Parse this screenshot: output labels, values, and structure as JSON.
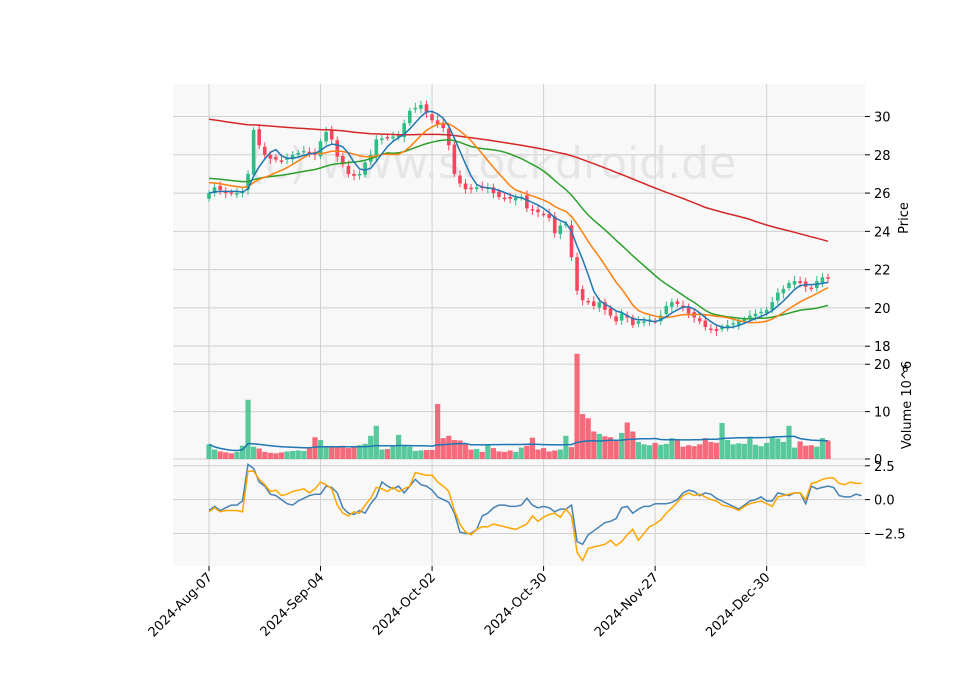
{
  "chart_data": {
    "type": "candlestick",
    "watermark": "(c) www.stockdroid.de",
    "x_labels": [
      "2024-Aug-07",
      "2024-Sep-04",
      "2024-Oct-02",
      "2024-Oct-30",
      "2024-Nov-27",
      "2024-Dec-30"
    ],
    "price_panel": {
      "ylabel": "Price",
      "ylim": [
        17.8,
        31.7
      ],
      "yticks": [
        "18",
        "20",
        "22",
        "24",
        "26",
        "28",
        "30"
      ],
      "ma_colors": {
        "ma_fast": "#1f77b4",
        "ma_mid": "#ff7f0e",
        "ma_slow": "#2ca02c",
        "ma_long": "#d62728"
      },
      "up_color": "#2ebd85",
      "down_color": "#f6465d",
      "close_anchors": [
        [
          0,
          26.0
        ],
        [
          1,
          26.3
        ],
        [
          3,
          26.0
        ],
        [
          5,
          26.0
        ],
        [
          6,
          26.1
        ],
        [
          7,
          27.0
        ],
        [
          8,
          29.3
        ],
        [
          9,
          28.5
        ],
        [
          10,
          28.0
        ],
        [
          11,
          27.8
        ],
        [
          13,
          27.7
        ],
        [
          15,
          28.0
        ],
        [
          17,
          28.2
        ],
        [
          19,
          28.0
        ],
        [
          20,
          28.7
        ],
        [
          21,
          29.2
        ],
        [
          22,
          28.8
        ],
        [
          23,
          27.9
        ],
        [
          24,
          27.5
        ],
        [
          25,
          27.0
        ],
        [
          26,
          26.9
        ],
        [
          27,
          27.0
        ],
        [
          28,
          27.6
        ],
        [
          29,
          28.0
        ],
        [
          30,
          28.8
        ],
        [
          32,
          28.9
        ],
        [
          34,
          29.0
        ],
        [
          36,
          30.3
        ],
        [
          38,
          30.6
        ],
        [
          40,
          29.8
        ],
        [
          42,
          29.4
        ],
        [
          43,
          28.5
        ],
        [
          44,
          27.0
        ],
        [
          45,
          26.5
        ],
        [
          46,
          26.2
        ],
        [
          48,
          26.3
        ],
        [
          50,
          26.3
        ],
        [
          51,
          26.0
        ],
        [
          52,
          25.8
        ],
        [
          54,
          25.7
        ],
        [
          56,
          25.8
        ],
        [
          57,
          25.2
        ],
        [
          58,
          25.1
        ],
        [
          60,
          24.9
        ],
        [
          61,
          24.7
        ],
        [
          62,
          23.9
        ],
        [
          63,
          24.3
        ],
        [
          64,
          24.4
        ],
        [
          66,
          20.9
        ],
        [
          67,
          20.4
        ],
        [
          68,
          20.3
        ],
        [
          69,
          20.1
        ],
        [
          70,
          20.3
        ],
        [
          71,
          19.9
        ],
        [
          72,
          19.6
        ],
        [
          73,
          19.3
        ],
        [
          74,
          19.7
        ],
        [
          75,
          19.5
        ],
        [
          76,
          19.1
        ],
        [
          77,
          19.3
        ],
        [
          78,
          19.3
        ],
        [
          79,
          19.4
        ],
        [
          80,
          19.3
        ],
        [
          81,
          19.6
        ],
        [
          82,
          20.1
        ],
        [
          83,
          20.3
        ],
        [
          84,
          20.2
        ],
        [
          85,
          20.0
        ],
        [
          86,
          19.7
        ],
        [
          87,
          19.5
        ],
        [
          88,
          19.3
        ],
        [
          89,
          19.0
        ],
        [
          90,
          18.9
        ],
        [
          91,
          18.8
        ],
        [
          92,
          19.0
        ],
        [
          93,
          19.1
        ],
        [
          94,
          19.2
        ],
        [
          95,
          19.3
        ],
        [
          96,
          19.4
        ],
        [
          97,
          19.6
        ],
        [
          98,
          19.7
        ],
        [
          99,
          19.8
        ],
        [
          100,
          19.9
        ],
        [
          101,
          20.3
        ],
        [
          102,
          20.8
        ],
        [
          103,
          21.0
        ],
        [
          104,
          21.3
        ],
        [
          105,
          21.4
        ],
        [
          106,
          21.3
        ],
        [
          107,
          21.1
        ],
        [
          108,
          21.0
        ],
        [
          109,
          21.4
        ],
        [
          110,
          21.6
        ]
      ]
    },
    "volume_panel": {
      "ylabel": "Volume  10^6",
      "ylim": [
        0,
        23
      ],
      "yticks": [
        "0",
        "10",
        "20"
      ],
      "line_color": "#1f77b4",
      "volumes": [
        3.1,
        2.0,
        1.6,
        1.4,
        1.2,
        1.5,
        2.8,
        12.5,
        2.6,
        2.2,
        1.5,
        1.3,
        1.2,
        1.4,
        1.6,
        1.7,
        1.8,
        1.7,
        2.4,
        4.6,
        4.0,
        2.6,
        2.7,
        2.5,
        2.8,
        2.3,
        2.6,
        2.9,
        3.2,
        4.9,
        7.0,
        2.0,
        2.1,
        2.6,
        5.1,
        2.9,
        2.6,
        1.7,
        1.8,
        1.9,
        1.9,
        11.6,
        4.4,
        4.9,
        4.0,
        3.9,
        3.2,
        2.0,
        2.1,
        1.5,
        3.1,
        2.3,
        1.6,
        1.5,
        1.8,
        1.5,
        2.4,
        2.8,
        4.5,
        2.0,
        2.3,
        1.6,
        1.8,
        2.0,
        4.9,
        2.5,
        22.2,
        9.5,
        8.6,
        5.8,
        5.3,
        4.8,
        4.6,
        4.1,
        5.5,
        7.7,
        5.8,
        3.6,
        3.1,
        2.9,
        3.4,
        3.0,
        3.2,
        4.4,
        3.9,
        2.6,
        2.9,
        2.7,
        3.1,
        4.4,
        3.6,
        3.4,
        7.6,
        4.0,
        3.1,
        3.3,
        3.2,
        4.4,
        3.0,
        2.7,
        3.4,
        4.6,
        4.3,
        3.6,
        7.0,
        2.4,
        3.7,
        2.8,
        2.9,
        2.6,
        4.4,
        3.9
      ]
    },
    "indicator_panel": {
      "ylim": [
        -4.9,
        3.0
      ],
      "yticks": [
        "−2.5",
        "0.0",
        "2.5"
      ],
      "series_colors": {
        "line1": "#4682b4",
        "line2": "#ffa500"
      },
      "line1": [
        -0.8,
        -0.5,
        -0.8,
        -0.6,
        -0.4,
        -0.4,
        -0.1,
        2.6,
        2.3,
        1.3,
        1.0,
        0.4,
        0.3,
        0.0,
        -0.3,
        -0.4,
        -0.1,
        0.1,
        0.3,
        0.4,
        0.4,
        1.0,
        0.9,
        0.5,
        -0.6,
        -1.0,
        -1.1,
        -0.8,
        -1.0,
        -0.3,
        0.2,
        1.3,
        1.0,
        0.8,
        1.0,
        0.5,
        1.0,
        1.5,
        1.1,
        1.0,
        0.7,
        0.2,
        0.0,
        -0.2,
        -1.0,
        -2.4,
        -2.5,
        -2.5,
        -2.2,
        -1.2,
        -1.0,
        -0.6,
        -0.4,
        -0.4,
        -0.5,
        -0.5,
        -0.4,
        0.1,
        -0.4,
        -0.6,
        -0.5,
        -0.6,
        -0.9,
        -0.7,
        -0.7,
        -0.4,
        -3.1,
        -3.3,
        -2.6,
        -2.3,
        -2.0,
        -1.7,
        -1.6,
        -1.4,
        -0.6,
        -0.5,
        -1.0,
        -0.7,
        -0.5,
        -0.5,
        -0.3,
        -0.3,
        -0.3,
        -0.2,
        0.0,
        0.5,
        0.7,
        0.6,
        0.3,
        0.5,
        0.4,
        0.1,
        -0.1,
        -0.3,
        -0.5,
        -0.7,
        -0.4,
        -0.1,
        0.0,
        0.2,
        -0.1,
        -0.1,
        0.5,
        0.4,
        0.3,
        0.5,
        0.5,
        -0.3,
        1.0,
        0.8,
        0.9,
        1.0,
        0.9,
        0.3,
        0.2,
        0.2,
        0.4,
        0.3
      ],
      "line2": [
        -0.9,
        -0.6,
        -0.9,
        -0.8,
        -0.8,
        -0.8,
        -0.9,
        2.1,
        2.1,
        1.5,
        1.1,
        0.6,
        0.7,
        0.3,
        0.4,
        0.6,
        0.7,
        0.8,
        0.5,
        0.8,
        1.3,
        1.1,
        0.8,
        -0.4,
        -1.0,
        -1.2,
        -0.9,
        -1.0,
        -0.4,
        0.1,
        0.9,
        0.8,
        0.6,
        0.9,
        0.6,
        0.8,
        1.0,
        2.0,
        1.9,
        1.8,
        1.8,
        1.3,
        1.0,
        0.6,
        -0.8,
        -1.8,
        -2.4,
        -2.6,
        -2.2,
        -2.0,
        -2.0,
        -1.8,
        -1.9,
        -2.0,
        -2.1,
        -2.2,
        -2.0,
        -1.8,
        -1.2,
        -1.6,
        -1.3,
        -1.1,
        -1.0,
        -1.3,
        -0.7,
        -1.2,
        -3.9,
        -4.5,
        -3.6,
        -3.5,
        -3.4,
        -3.3,
        -3.0,
        -3.4,
        -3.1,
        -2.6,
        -2.2,
        -3.0,
        -2.5,
        -2.0,
        -1.8,
        -1.5,
        -1.0,
        -0.6,
        -0.2,
        0.3,
        0.5,
        0.3,
        0.4,
        0.2,
        0.0,
        -0.1,
        -0.4,
        -0.5,
        -0.6,
        -0.8,
        -0.5,
        -0.3,
        -0.2,
        -0.1,
        -0.3,
        -0.5,
        0.2,
        0.3,
        0.4,
        0.5,
        0.5,
        0.0,
        1.2,
        1.3,
        1.5,
        1.6,
        1.6,
        1.2,
        1.1,
        1.3,
        1.2,
        1.2
      ]
    }
  }
}
